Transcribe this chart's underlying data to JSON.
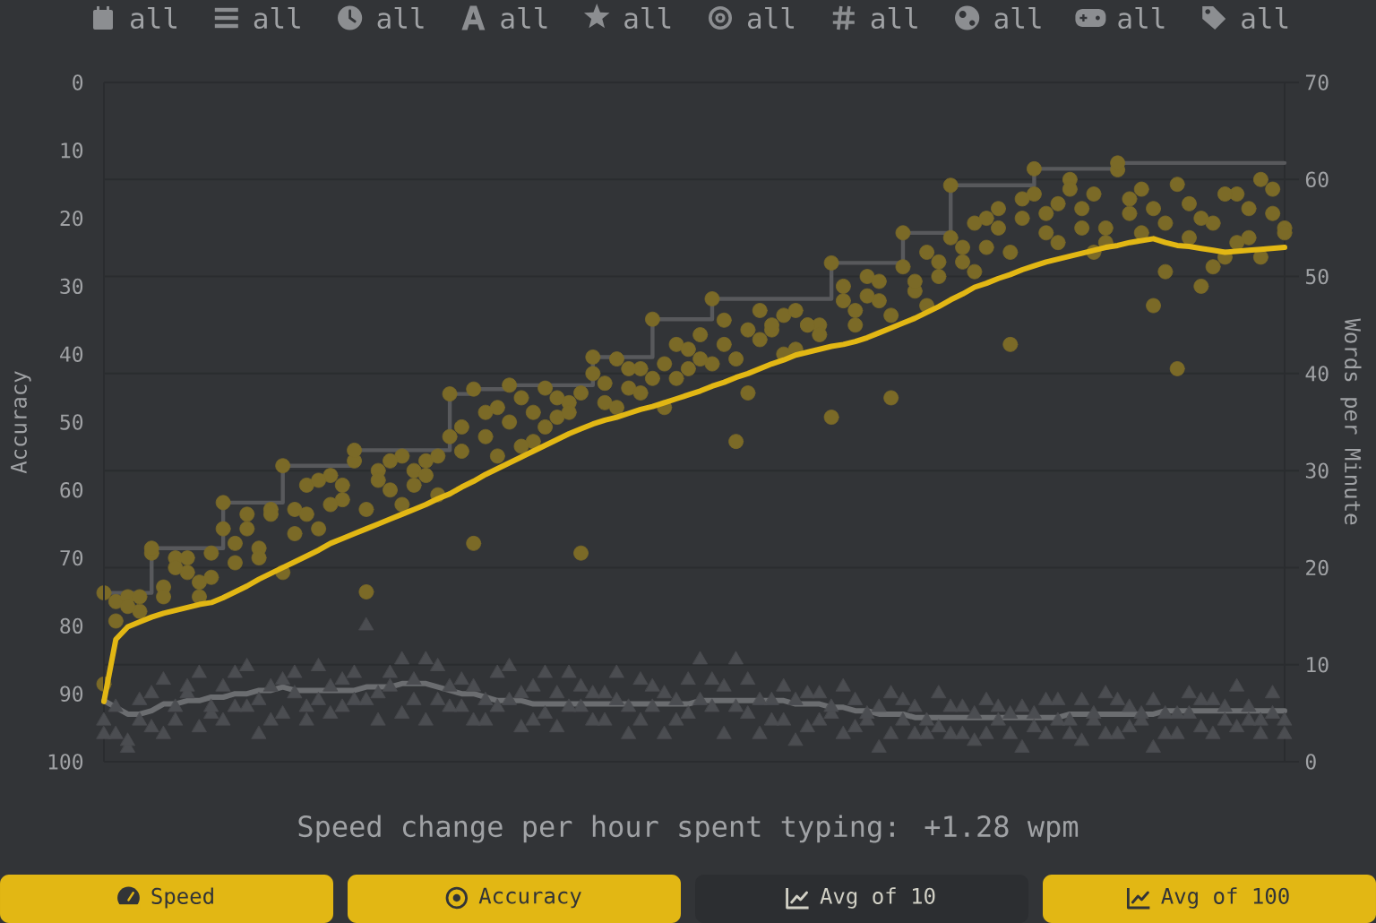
{
  "chart_data": {
    "type": "scatter",
    "categories": [
      null,
      null,
      null,
      null,
      null,
      null,
      null,
      null,
      null,
      null,
      null,
      null,
      null,
      null,
      null,
      null,
      null,
      null,
      null,
      null,
      null,
      null,
      null,
      null,
      null,
      null,
      null,
      null,
      null,
      null,
      null,
      null,
      null,
      null,
      null,
      null,
      null,
      null,
      null,
      null,
      null,
      null,
      null,
      null,
      null,
      null,
      null,
      null,
      null,
      null,
      null,
      null,
      null,
      null,
      null,
      null,
      null,
      null,
      null,
      null,
      null,
      null,
      null,
      null,
      null,
      null,
      null,
      null,
      null,
      null,
      null,
      null,
      null,
      null,
      null,
      null,
      null,
      null,
      null,
      null,
      null,
      null,
      null,
      null,
      null,
      null,
      null,
      null,
      null,
      null,
      null,
      null,
      null,
      null,
      null,
      null,
      null,
      null,
      null,
      null
    ],
    "ylabel": "Accuracy",
    "y2label": "Words per Minute",
    "ylim": [
      100,
      0
    ],
    "yticks": [
      0,
      10,
      20,
      30,
      40,
      50,
      60,
      70,
      80,
      90,
      100
    ],
    "y2lim": [
      0,
      70
    ],
    "y2ticks": [
      0,
      10,
      20,
      30,
      40,
      50,
      60,
      70
    ],
    "grid": "y2",
    "series": [
      {
        "type": "step",
        "axis": "y2",
        "color": "#58595c",
        "values": [
          17.4,
          17.4,
          17.4,
          17.4,
          22.0,
          22.0,
          22.0,
          22.0,
          22.0,
          22.0,
          26.7,
          26.7,
          26.7,
          26.7,
          26.7,
          30.5,
          30.5,
          30.5,
          30.5,
          30.5,
          30.5,
          32.1,
          32.1,
          32.1,
          32.1,
          32.1,
          32.1,
          32.1,
          32.1,
          37.9,
          37.9,
          38.4,
          38.4,
          38.4,
          38.8,
          38.8,
          38.8,
          38.8,
          38.8,
          38.8,
          38.8,
          41.7,
          41.7,
          41.7,
          41.7,
          41.7,
          45.6,
          45.6,
          45.6,
          45.6,
          45.6,
          47.7,
          47.7,
          47.7,
          47.7,
          47.7,
          47.7,
          47.7,
          47.7,
          47.7,
          47.7,
          51.4,
          51.4,
          51.4,
          51.4,
          51.4,
          51.4,
          54.5,
          54.5,
          54.5,
          54.5,
          59.4,
          59.4,
          59.4,
          59.4,
          59.4,
          59.4,
          59.4,
          61.1,
          61.1,
          61.1,
          61.1,
          61.1,
          61.1,
          61.1,
          61.7,
          61.7,
          61.7,
          61.7,
          61.7,
          61.7,
          61.7,
          61.7,
          61.7,
          61.7,
          61.7,
          61.7,
          61.7,
          61.7,
          61.7
        ]
      },
      {
        "axis": "y2",
        "color": "#7b6a27",
        "marker": "circle",
        "values": [
          8.0,
          16.5,
          17.0,
          15.5,
          21.5,
          18.0,
          21.0,
          19.5,
          17.0,
          21.5,
          24.0,
          20.5,
          25.5,
          22.0,
          26.0,
          19.5,
          26.0,
          28.5,
          24.0,
          29.5,
          27.0,
          31.0,
          17.5,
          30.0,
          28.0,
          31.5,
          28.5,
          31.0,
          27.5,
          33.5,
          34.5,
          22.5,
          36.0,
          31.5,
          35.0,
          37.5,
          33.0,
          38.5,
          35.5,
          37.0,
          21.5,
          40.0,
          37.0,
          41.5,
          38.5,
          40.5,
          39.5,
          36.5,
          43.0,
          40.5,
          44.0,
          41.0,
          45.5,
          33.0,
          38.0,
          46.5,
          44.5,
          46.0,
          42.5,
          45.0,
          45.0,
          35.5,
          49.0,
          46.5,
          50.0,
          47.5,
          37.5,
          51.0,
          48.5,
          52.5,
          50.0,
          54.0,
          51.5,
          55.5,
          53.0,
          57.0,
          43.0,
          56.0,
          58.5,
          54.5,
          57.5,
          60.0,
          55.0,
          58.5,
          53.5,
          61.0,
          56.5,
          59.0,
          47.0,
          55.5,
          40.5,
          57.5,
          49.0,
          55.5,
          52.0,
          58.5,
          54.0,
          60.0,
          56.5,
          55.0
        ]
      },
      {
        "axis": "y2",
        "color": "#7b6a27",
        "marker": "circle",
        "values": [
          17.4,
          14.5,
          16.0,
          17.0,
          22.0,
          17.0,
          20.0,
          21.0,
          18.5,
          19.0,
          26.7,
          22.5,
          24.0,
          21.0,
          25.5,
          30.5,
          23.5,
          25.5,
          29.0,
          26.5,
          28.5,
          32.1,
          26.0,
          29.0,
          31.0,
          26.5,
          30.0,
          29.5,
          31.5,
          37.9,
          32.0,
          38.4,
          33.5,
          36.5,
          38.8,
          32.5,
          36.0,
          34.5,
          37.5,
          36.0,
          38.0,
          41.7,
          39.0,
          36.5,
          40.5,
          38.0,
          45.6,
          41.0,
          39.5,
          42.5,
          41.5,
          47.7,
          43.0,
          41.5,
          44.5,
          43.5,
          45.0,
          42.0,
          46.5,
          45.0,
          44.0,
          51.4,
          47.5,
          45.0,
          48.0,
          49.5,
          46.0,
          54.5,
          49.5,
          47.0,
          51.5,
          59.4,
          53.0,
          50.5,
          56.0,
          55.0,
          52.5,
          58.0,
          61.1,
          56.5,
          53.5,
          59.0,
          57.0,
          52.5,
          55.0,
          61.7,
          58.0,
          54.5,
          57.0,
          50.5,
          59.5,
          54.0,
          56.0,
          51.0,
          58.5,
          53.5,
          57.0,
          52.0,
          59.0,
          54.5
        ]
      },
      {
        "axis": "y",
        "color": "#4b4d51",
        "marker": "triangle",
        "values": [
          94,
          96,
          98,
          91,
          95,
          88,
          94,
          90,
          87,
          93,
          89,
          92,
          86,
          91,
          94,
          88,
          90,
          92,
          86,
          93,
          88,
          91,
          80,
          90,
          87,
          93,
          88,
          85,
          91,
          89,
          92,
          89,
          94,
          87,
          91,
          95,
          89,
          93,
          90,
          87,
          92,
          94,
          90,
          91,
          96,
          88,
          92,
          90,
          94,
          88,
          85,
          92,
          89,
          85,
          93,
          91,
          94,
          89,
          91,
          95,
          90,
          93,
          96,
          91,
          94,
          92,
          96,
          91,
          96,
          94,
          90,
          96,
          92,
          97,
          91,
          94,
          96,
          92,
          95,
          91,
          94,
          96,
          91,
          94,
          90,
          96,
          92,
          94,
          91,
          96,
          93,
          90,
          95,
          91,
          94,
          89,
          94,
          96,
          90,
          94
        ]
      },
      {
        "axis": "y",
        "color": "#4b4d51",
        "marker": "triangle",
        "values": [
          96,
          92,
          97,
          94,
          90,
          96,
          92,
          89,
          95,
          92,
          94,
          87,
          92,
          96,
          89,
          93,
          87,
          94,
          91,
          89,
          92,
          87,
          91,
          94,
          89,
          85,
          91,
          94,
          86,
          92,
          88,
          94,
          91,
          92,
          86,
          90,
          94,
          87,
          95,
          92,
          89,
          90,
          94,
          87,
          92,
          94,
          89,
          96,
          91,
          93,
          91,
          88,
          96,
          92,
          88,
          96,
          91,
          94,
          97,
          90,
          94,
          92,
          89,
          95,
          93,
          98,
          90,
          94,
          92,
          96,
          95,
          92,
          96,
          93,
          96,
          92,
          93,
          98,
          93,
          96,
          91,
          94,
          97,
          93,
          96,
          91,
          95,
          93,
          98,
          93,
          96,
          93,
          91,
          96,
          92,
          95,
          92,
          94,
          93,
          96
        ]
      },
      {
        "type": "line",
        "axis": "y",
        "color": "#6b6d70",
        "values": [
          91,
          92,
          93,
          93,
          92.5,
          91.5,
          91.5,
          91,
          91,
          90.5,
          90.5,
          90,
          90,
          89.5,
          89.5,
          89,
          89.5,
          89.5,
          89.5,
          89.5,
          89.5,
          89.5,
          89,
          89,
          89,
          88.5,
          88.5,
          88.5,
          89,
          89.5,
          90,
          90,
          90.5,
          91,
          91,
          91,
          91.5,
          91.5,
          91.5,
          91.5,
          91.5,
          91.5,
          91.5,
          91.5,
          91.5,
          91.5,
          91.5,
          91.5,
          91.5,
          91.5,
          91,
          91,
          91,
          91,
          91,
          91,
          91,
          91,
          91.5,
          91.5,
          91.5,
          92,
          92,
          92.5,
          92.5,
          93,
          93,
          93,
          93.5,
          93.5,
          93.5,
          93.5,
          93.5,
          93.5,
          93.5,
          93.5,
          93.5,
          93.5,
          93.5,
          93.5,
          93.5,
          93,
          93,
          93,
          93,
          93,
          93,
          93,
          93,
          92.5,
          92.5,
          92.5,
          92.5,
          92.5,
          92.5,
          92.5,
          92.5,
          92.5,
          92.5,
          92.5
        ]
      },
      {
        "type": "line",
        "axis": "y2",
        "color": "#e2b714",
        "values": [
          6.2,
          12.6,
          13.9,
          14.4,
          14.9,
          15.3,
          15.6,
          15.9,
          16.2,
          16.4,
          16.9,
          17.5,
          18.1,
          18.8,
          19.4,
          20.0,
          20.6,
          21.2,
          21.8,
          22.5,
          23.0,
          23.5,
          24.0,
          24.5,
          25.0,
          25.5,
          26.0,
          26.5,
          27.1,
          27.6,
          28.3,
          28.9,
          29.6,
          30.2,
          30.8,
          31.4,
          32.0,
          32.6,
          33.2,
          33.8,
          34.3,
          34.8,
          35.2,
          35.5,
          35.9,
          36.3,
          36.6,
          37.0,
          37.4,
          37.8,
          38.2,
          38.7,
          39.1,
          39.6,
          40.0,
          40.5,
          41.0,
          41.4,
          41.9,
          42.2,
          42.5,
          42.8,
          43.0,
          43.3,
          43.7,
          44.2,
          44.7,
          45.2,
          45.7,
          46.3,
          46.9,
          47.6,
          48.2,
          48.9,
          49.3,
          49.8,
          50.2,
          50.7,
          51.1,
          51.5,
          51.8,
          52.1,
          52.4,
          52.7,
          53.0,
          53.2,
          53.5,
          53.7,
          53.9,
          53.5,
          53.2,
          53.1,
          52.9,
          52.7,
          52.5,
          52.6,
          52.7,
          52.8,
          52.9,
          53.0
        ]
      }
    ],
    "annotations": [
      "all",
      "all",
      "all",
      "all",
      "all",
      "all",
      "all",
      "all",
      "all",
      "all",
      "Speed change per hour spent typing: +1.28 wpm",
      "Speed",
      "Accuracy",
      "Avg of 10",
      "Avg of 100"
    ]
  }
}
